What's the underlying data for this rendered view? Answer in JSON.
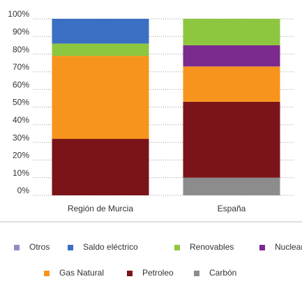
{
  "chart_data": {
    "type": "stacked_bar",
    "categories": [
      "Región de Murcia",
      "España"
    ],
    "series": [
      {
        "name": "Otros",
        "color": "#8b8fc4",
        "values": [
          0,
          0
        ]
      },
      {
        "name": "Saldo eléctrico",
        "color": "#3a6fc4",
        "values": [
          14,
          0
        ]
      },
      {
        "name": "Renovables",
        "color": "#8dc63f",
        "values": [
          7,
          15
        ]
      },
      {
        "name": "Nuclear",
        "color": "#7b2a8e",
        "values": [
          0,
          12
        ]
      },
      {
        "name": "Gas Natural",
        "color": "#f7941d",
        "values": [
          47,
          20
        ]
      },
      {
        "name": "Petroleo",
        "color": "#7b1418",
        "values": [
          32,
          43
        ]
      },
      {
        "name": "Carbón",
        "color": "#8c8c8c",
        "values": [
          0,
          10
        ]
      }
    ],
    "ylim": [
      0,
      100
    ],
    "yticks": [
      {
        "value": 0,
        "label": "0%"
      },
      {
        "value": 10,
        "label": "10%"
      },
      {
        "value": 20,
        "label": "20%"
      },
      {
        "value": 30,
        "label": "30%"
      },
      {
        "value": 40,
        "label": "40%"
      },
      {
        "value": 50,
        "label": "50%"
      },
      {
        "value": 60,
        "label": "60%"
      },
      {
        "value": 70,
        "label": "70%"
      },
      {
        "value": 80,
        "label": "80%"
      },
      {
        "value": 90,
        "label": "90%"
      },
      {
        "value": 100,
        "label": "100%"
      }
    ],
    "grid": true,
    "legend": "bottom"
  }
}
